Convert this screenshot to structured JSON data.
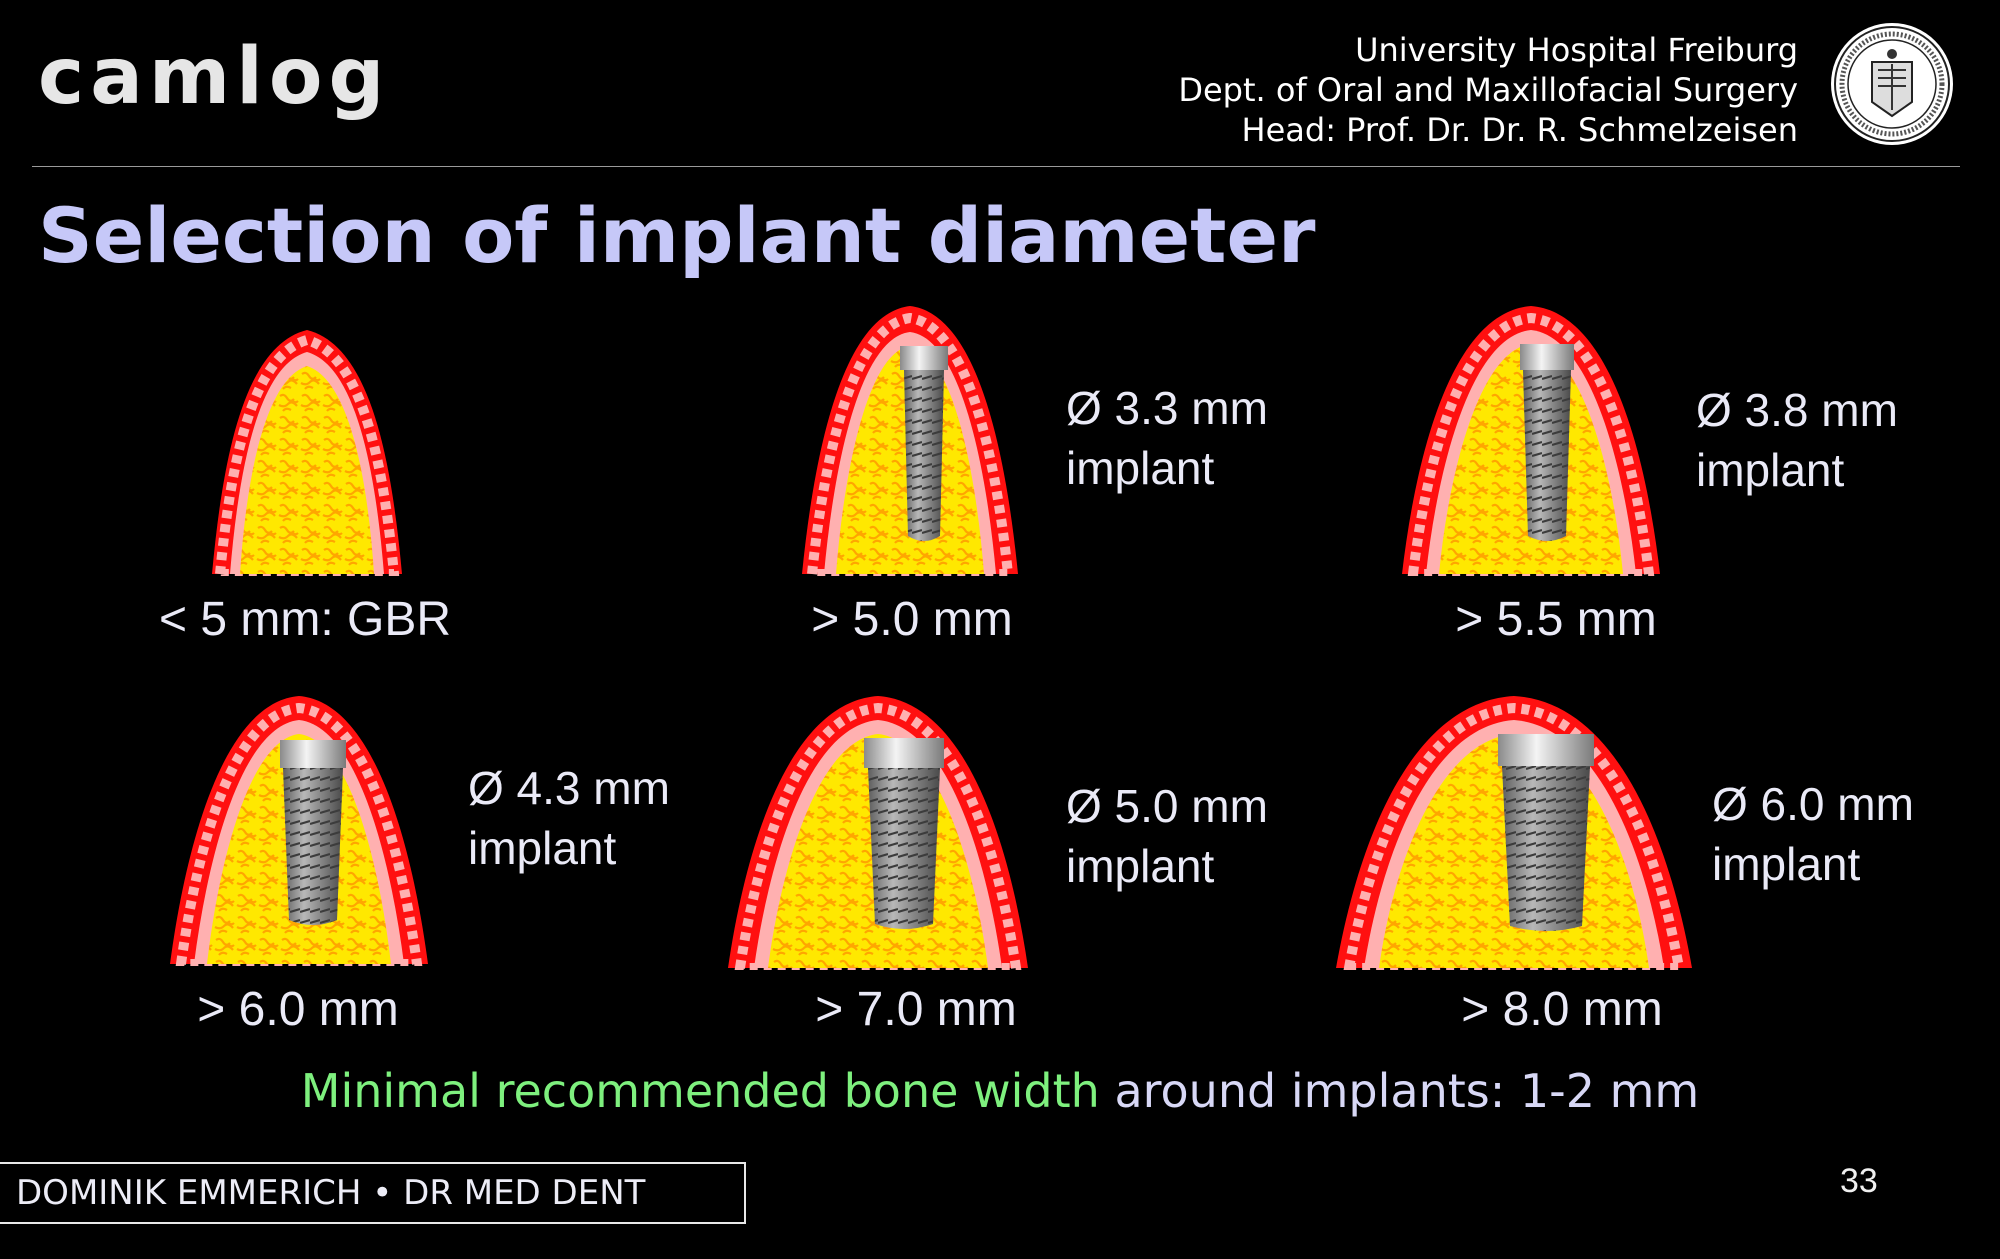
{
  "logo": "camlog",
  "hospital": {
    "line1": "University Hospital Freiburg",
    "line2": "Dept. of Oral and Maxillofacial Surgery",
    "line3": "Head: Prof. Dr. Dr. R. Schmelzeisen"
  },
  "title": "Selection of implant diameter",
  "panels": [
    {
      "caption": "< 5 mm: GBR",
      "diameter": "",
      "implant": "",
      "has_implant": false
    },
    {
      "caption": "> 5.0 mm",
      "diameter": "Ø 3.3 mm",
      "implant": "implant",
      "has_implant": true
    },
    {
      "caption": "> 5.5 mm",
      "diameter": "Ø 3.8 mm",
      "implant": "implant",
      "has_implant": true
    },
    {
      "caption": "> 6.0 mm",
      "diameter": "Ø 4.3 mm",
      "implant": "implant",
      "has_implant": true
    },
    {
      "caption": "> 7.0 mm",
      "diameter": "Ø 5.0 mm",
      "implant": "implant",
      "has_implant": true
    },
    {
      "caption": "> 8.0 mm",
      "diameter": "Ø 6.0 mm",
      "implant": "implant",
      "has_implant": true
    }
  ],
  "note": {
    "highlight": "Minimal recommended bone width",
    "rest": " around implants: 1-2 mm",
    "highlight_color": "#7ef07e"
  },
  "footer": {
    "author": "DOMINIK EMMERICH  •  DR MED DENT",
    "page": "33"
  },
  "colors": {
    "background": "#000000",
    "title": "#c6c8f8",
    "gingiva": "#ff1010",
    "periosteum": "#ffb0b0",
    "bone": "#ffe800",
    "trabecular": "#ffa600",
    "implant": "#9a9a9a"
  },
  "icons": {
    "seal": "university-seal-icon"
  }
}
